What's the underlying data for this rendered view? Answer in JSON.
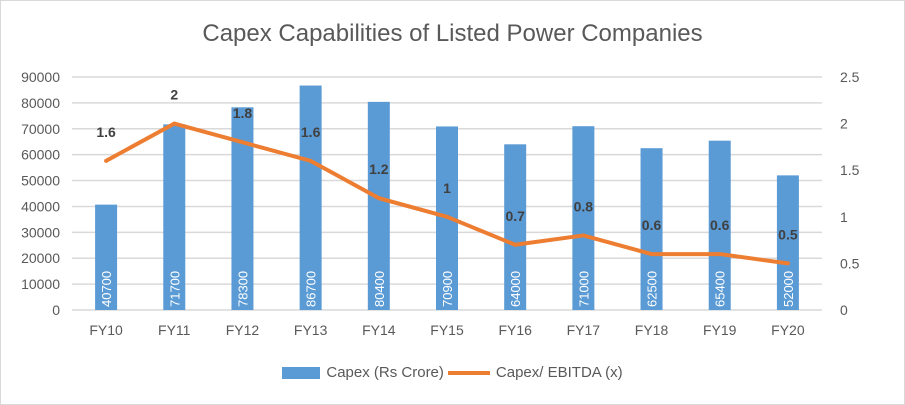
{
  "chart_data": {
    "type": "bar+line",
    "title": "Capex Capabilities of Listed Power Companies",
    "categories": [
      "FY10",
      "FY11",
      "FY12",
      "FY13",
      "FY14",
      "FY15",
      "FY16",
      "FY17",
      "FY18",
      "FY19",
      "FY20"
    ],
    "series": [
      {
        "name": "Capex (Rs Crore)",
        "type": "bar",
        "axis": "left",
        "color": "#5b9bd5",
        "values": [
          40700,
          71700,
          78300,
          86700,
          80400,
          70900,
          64000,
          71000,
          62500,
          65400,
          52000
        ]
      },
      {
        "name": "Capex/ EBITDA (x)",
        "type": "line",
        "axis": "right",
        "color": "#ed7d31",
        "values": [
          1.6,
          2,
          1.8,
          1.6,
          1.2,
          1,
          0.7,
          0.8,
          0.6,
          0.6,
          0.5
        ]
      }
    ],
    "left_axis": {
      "ylim": [
        0,
        90000
      ],
      "ticks": [
        "0",
        "10000",
        "20000",
        "30000",
        "40000",
        "50000",
        "60000",
        "70000",
        "80000",
        "90000"
      ]
    },
    "right_axis": {
      "ylim": [
        0,
        2.5
      ],
      "ticks": [
        "0",
        "0.5",
        "1",
        "1.5",
        "2",
        "2.5"
      ]
    },
    "grid": true,
    "legend": "bottom"
  }
}
